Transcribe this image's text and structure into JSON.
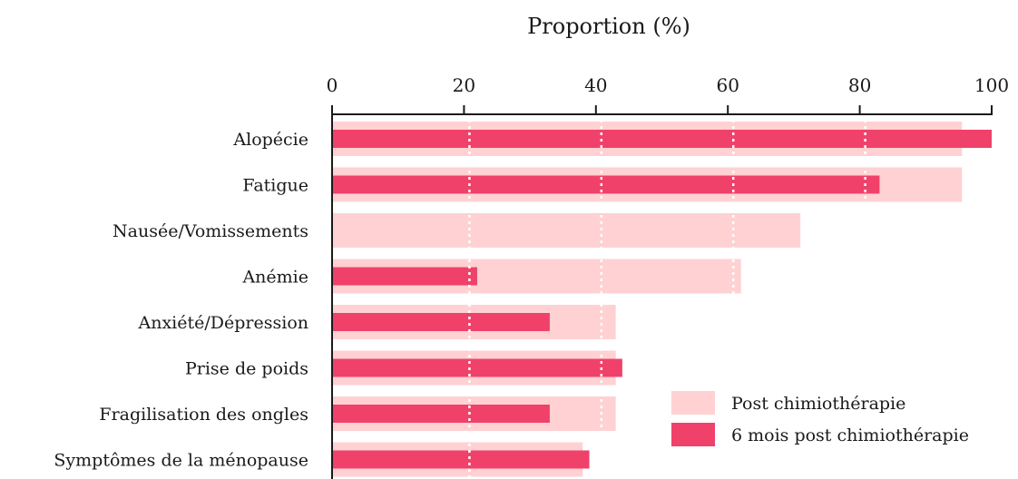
{
  "chart_data": {
    "type": "bar",
    "orientation": "horizontal",
    "title": "",
    "xlabel": "Proportion (%)",
    "xlabel_position": "top",
    "xlim": [
      0,
      100
    ],
    "x_ticks": [
      0,
      20,
      40,
      60,
      80,
      100
    ],
    "x_tick_labels": [
      "0",
      "20",
      "40",
      "60",
      "80",
      "100"
    ],
    "grid": "vertical dotted white",
    "categories": [
      "Alopécie",
      "Fatigue",
      "Nausée/Vomissements",
      "Anémie",
      "Anxiété/Dépression",
      "Prise de poids",
      "Fragilisation des ongles",
      "Symptômes de la ménopause"
    ],
    "series": [
      {
        "name": "Post chimiothérapie",
        "color": "#ffd1d3",
        "values": [
          95.5,
          95.5,
          71,
          62,
          43,
          43,
          43,
          38
        ]
      },
      {
        "name": "6 mois post chimiothérapie",
        "color": "#f0416a",
        "values": [
          100,
          83,
          0,
          22,
          33,
          44,
          33,
          39
        ]
      }
    ],
    "legend_position": "bottom-right"
  }
}
